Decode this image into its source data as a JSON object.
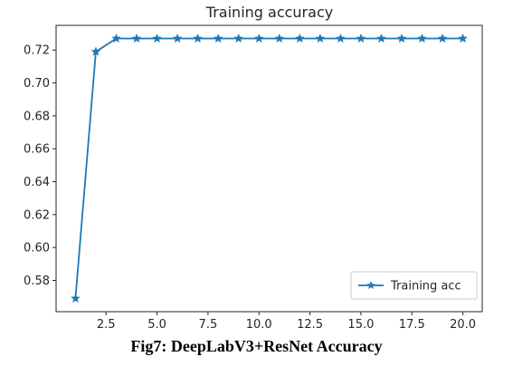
{
  "chart_data": {
    "type": "line",
    "title": "Training accuracy",
    "xlabel": "",
    "ylabel": "",
    "x": [
      1,
      2,
      3,
      4,
      5,
      6,
      7,
      8,
      9,
      10,
      11,
      12,
      13,
      14,
      15,
      16,
      17,
      18,
      19,
      20
    ],
    "series": [
      {
        "name": "Training acc",
        "color": "#1f77b4",
        "marker": "star",
        "values": [
          0.569,
          0.719,
          0.727,
          0.727,
          0.727,
          0.727,
          0.727,
          0.727,
          0.727,
          0.727,
          0.727,
          0.727,
          0.727,
          0.727,
          0.727,
          0.727,
          0.727,
          0.727,
          0.727,
          0.727
        ]
      }
    ],
    "xlim": [
      0.05,
      20.95
    ],
    "ylim": [
      0.561,
      0.735
    ],
    "xticks": [
      "2.5",
      "5.0",
      "7.5",
      "10.0",
      "12.5",
      "15.0",
      "17.5",
      "20.0"
    ],
    "yticks": [
      "0.58",
      "0.60",
      "0.62",
      "0.64",
      "0.66",
      "0.68",
      "0.70",
      "0.72"
    ],
    "grid": false,
    "legend_position": "lower-right"
  },
  "caption": "Fig7: DeepLabV3+ResNet Accuracy"
}
